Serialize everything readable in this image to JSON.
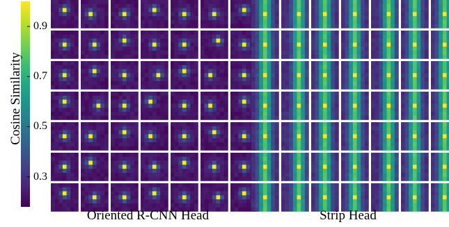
{
  "chart_data": {
    "type": "heatmap",
    "colormap": "viridis",
    "colorbar": {
      "label": "Cosine Similarity",
      "ticks": [
        "0.3",
        "0.5",
        "0.7",
        "0.9"
      ],
      "tick_values": [
        0.3,
        0.5,
        0.7,
        0.9
      ],
      "range": [
        0.18,
        1.0
      ]
    },
    "panels": [
      {
        "name": "Oriented R-CNN Head",
        "grid_rows": 7,
        "grid_cols": 7,
        "cell_resolution": 7,
        "pattern": "peaked",
        "background": 0.22,
        "peak": 0.98
      },
      {
        "name": "Strip Head",
        "grid_rows": 7,
        "grid_cols": 7,
        "cell_resolution": 7,
        "pattern": "vertical-strip",
        "background": 0.28,
        "peak": 0.98
      }
    ]
  }
}
